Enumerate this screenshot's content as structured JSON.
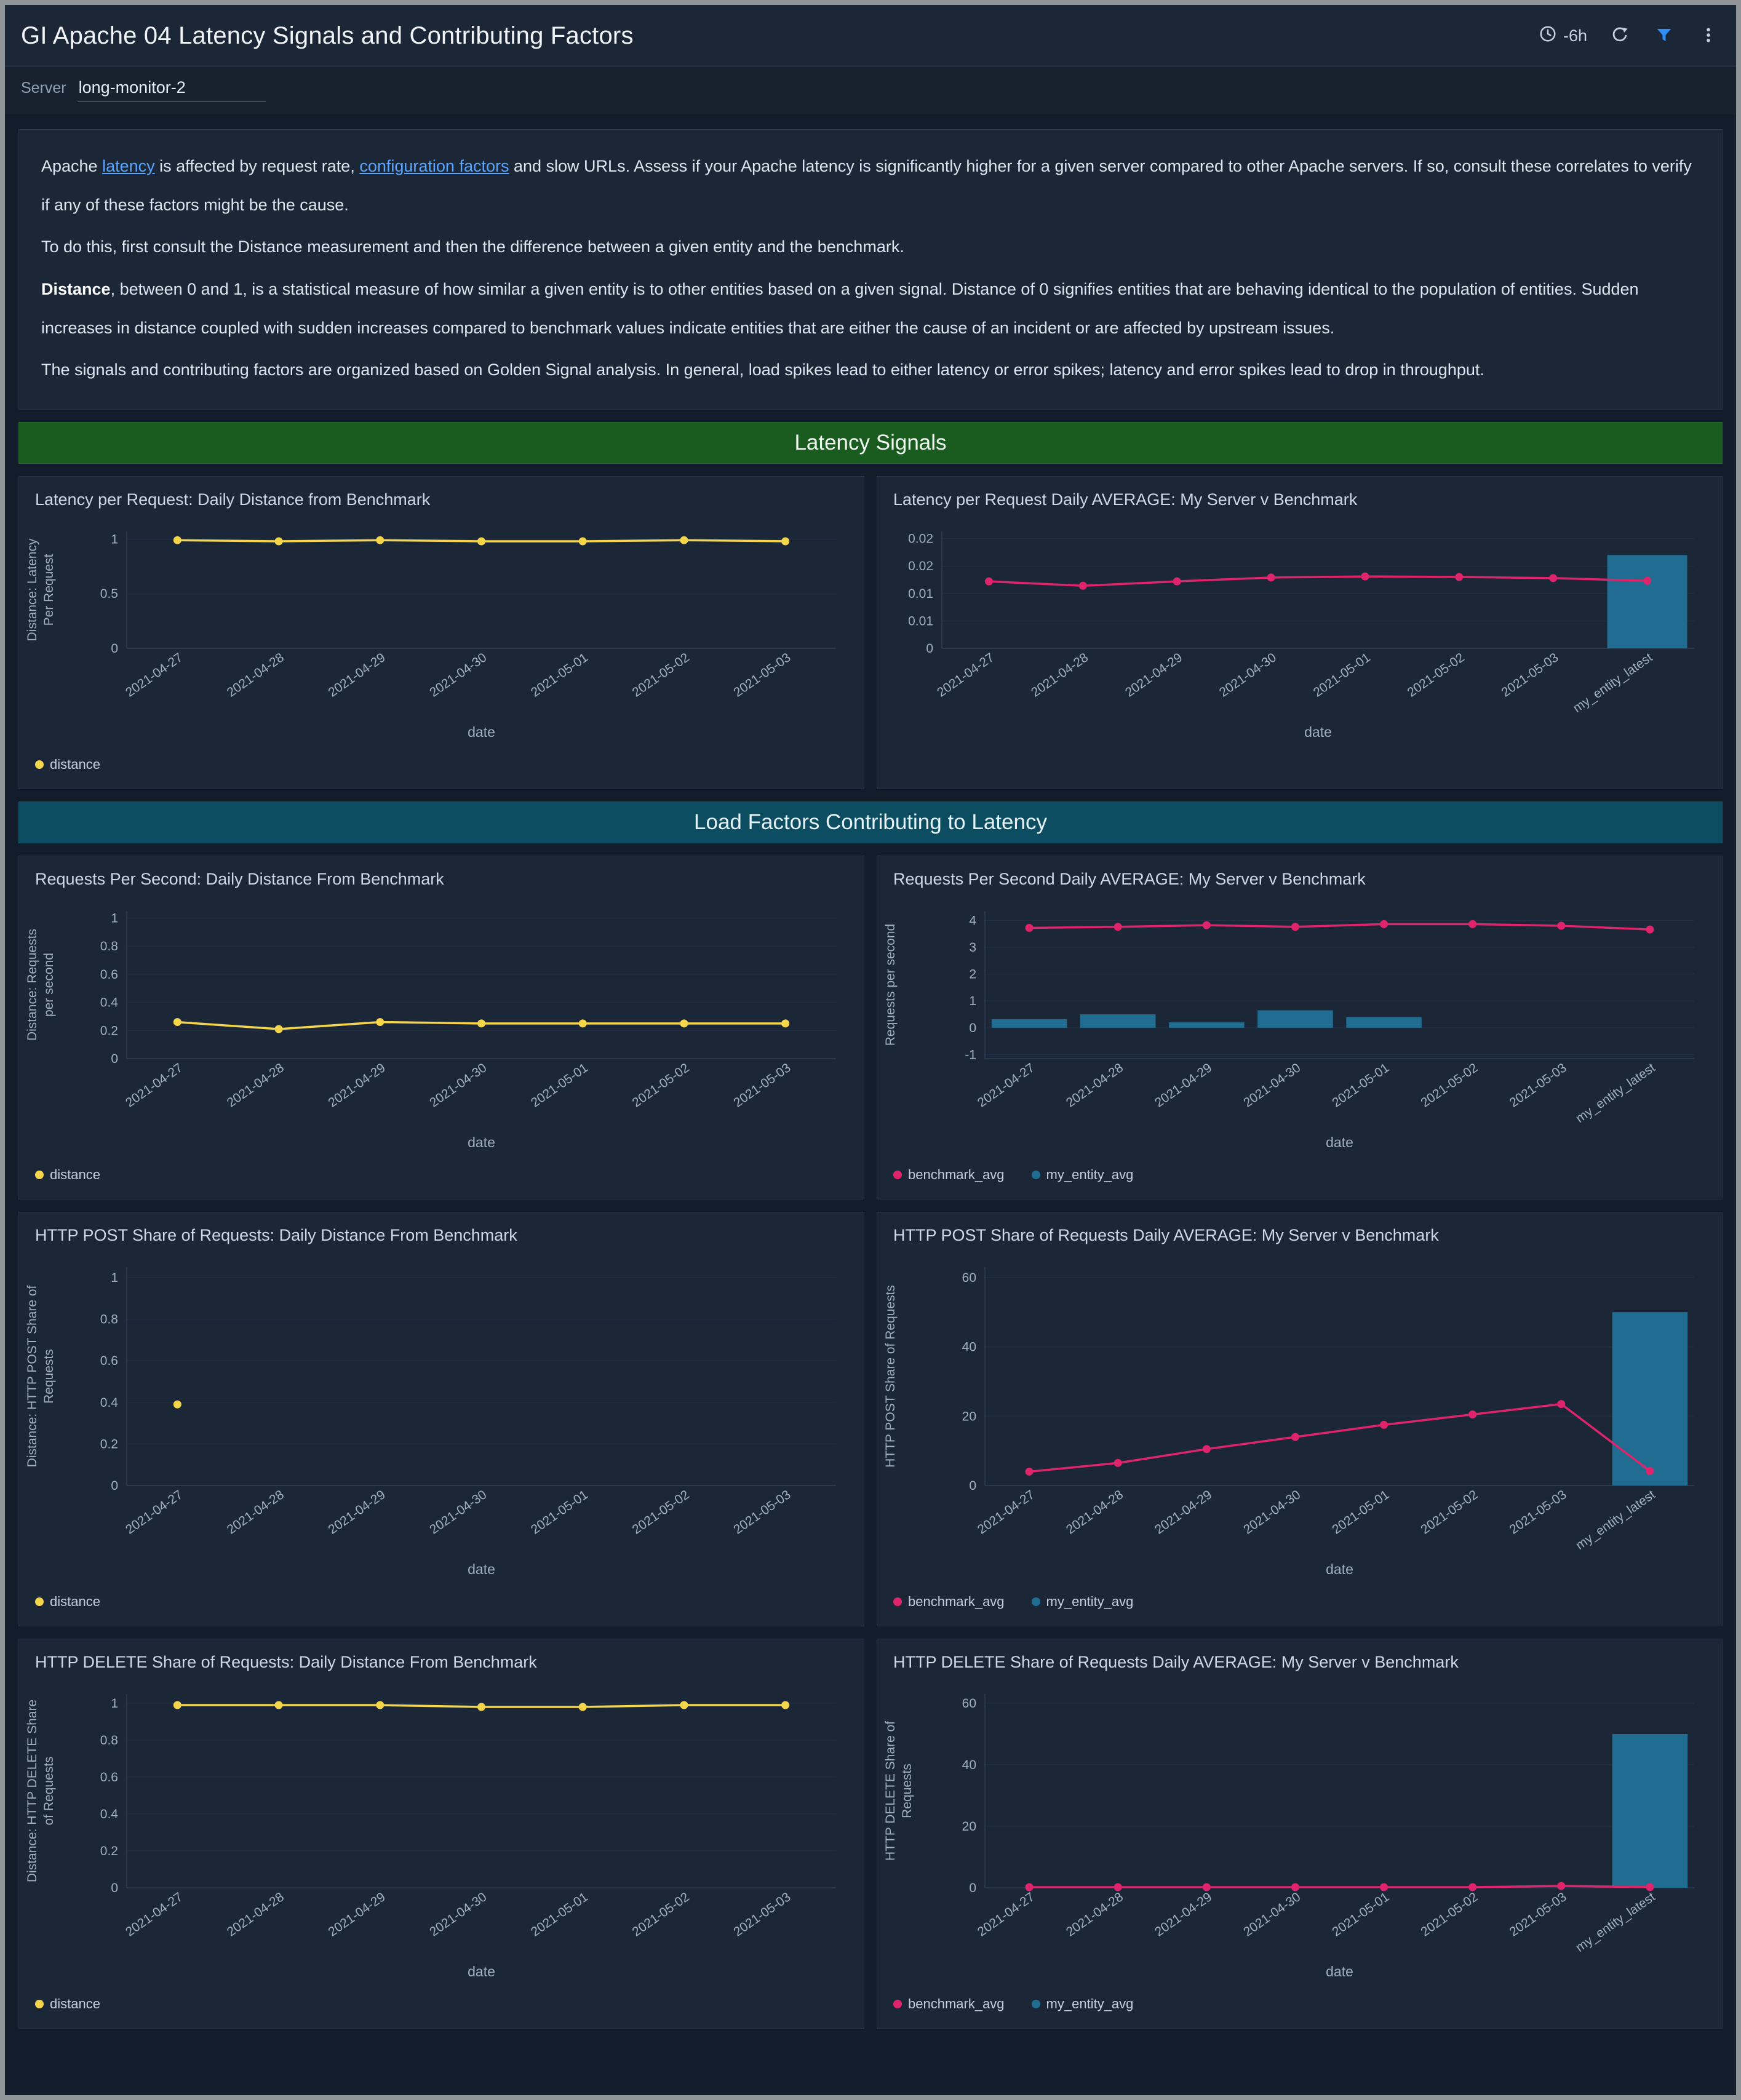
{
  "header": {
    "title": "GI Apache 04 Latency Signals and Contributing Factors",
    "time_range": "-6h"
  },
  "filter": {
    "label": "Server",
    "value": "long-monitor-2"
  },
  "description": {
    "p1": {
      "t1": "Apache ",
      "link1": "latency",
      "t2": " is affected by request rate, ",
      "link2": "configuration factors",
      "t3": " and slow URLs. Assess if your Apache latency is significantly higher for a given server compared to other Apache servers. If so, consult these correlates to verify if any of these factors might be the cause."
    },
    "p2": "To do this, first consult the Distance measurement and then the difference between a given entity and the benchmark.",
    "p3_bold": "Distance",
    "p3_rest": ", between 0 and 1, is a statistical measure of how similar a given entity is to other entities based on a given signal. Distance of 0 signifies entities that are behaving identical to the population of entities. Sudden increases in distance coupled with sudden increases compared to benchmark values indicate entities that are either the cause of an incident or are affected by upstream issues.",
    "p4": "The signals and contributing factors are organized based on Golden Signal analysis. In general, load spikes lead to either latency or error spikes; latency and error spikes lead to drop in throughput."
  },
  "sections": {
    "latency": "Latency Signals",
    "load": "Load Factors Contributing to Latency"
  },
  "colors": {
    "accent_yellow": "#f5d54a",
    "accent_pink": "#e0246c",
    "accent_teal": "#216d92",
    "link_blue": "#58a6ff",
    "green_band": "#1a5c20",
    "teal_band": "#0d4d61"
  },
  "chart_data": [
    {
      "type": "line",
      "title": "Latency per Request: Daily Distance from Benchmark",
      "categories": [
        "2021-04-27",
        "2021-04-28",
        "2021-04-29",
        "2021-04-30",
        "2021-05-01",
        "2021-05-02",
        "2021-05-03"
      ],
      "series": [
        {
          "name": "distance",
          "kind": "line",
          "color": "#f5d54a",
          "values": [
            0.99,
            0.98,
            0.99,
            0.98,
            0.98,
            0.99,
            0.98
          ]
        }
      ],
      "xlabel": "date",
      "ylabel": "Distance: Latency Per Request",
      "ylim": [
        0,
        1.07
      ],
      "yticks": {
        "values": [
          0,
          0.5,
          1
        ],
        "labels": [
          "0",
          "0.5",
          "1"
        ]
      },
      "legend": true
    },
    {
      "type": "line+bar",
      "title": "Latency per Request Daily AVERAGE: My Server v Benchmark",
      "categories": [
        "2021-04-27",
        "2021-04-28",
        "2021-04-29",
        "2021-04-30",
        "2021-05-01",
        "2021-05-02",
        "2021-05-03",
        "my_entity_latest"
      ],
      "series": [
        {
          "name": "benchmark_avg",
          "kind": "line",
          "color": "#e0246c",
          "values": [
            0.0122,
            0.0114,
            0.0122,
            0.0129,
            0.0131,
            0.013,
            0.0128,
            0.0123
          ]
        },
        {
          "name": "my_entity_avg",
          "kind": "bar",
          "color": "#216d92",
          "values": [
            null,
            null,
            null,
            null,
            null,
            null,
            null,
            0.017
          ]
        }
      ],
      "xlabel": "date",
      "ylabel": "",
      "ylim": [
        0,
        0.0213
      ],
      "yticks": {
        "values": [
          0,
          0.005,
          0.01,
          0.015,
          0.02
        ],
        "labels": [
          "0",
          "0.01",
          "0.01",
          "0.02",
          "0.02"
        ]
      },
      "legend": false
    },
    {
      "type": "line",
      "title": "Requests Per Second: Daily Distance From Benchmark",
      "categories": [
        "2021-04-27",
        "2021-04-28",
        "2021-04-29",
        "2021-04-30",
        "2021-05-01",
        "2021-05-02",
        "2021-05-03"
      ],
      "series": [
        {
          "name": "distance",
          "kind": "line",
          "color": "#f5d54a",
          "values": [
            0.26,
            0.21,
            0.26,
            0.25,
            0.25,
            0.25,
            0.25
          ]
        }
      ],
      "xlabel": "date",
      "ylabel": "Distance: Requests per second",
      "ylim": [
        0,
        1.05
      ],
      "yticks": {
        "values": [
          0,
          0.2,
          0.4,
          0.6,
          0.8,
          1
        ],
        "labels": [
          "0",
          "0.2",
          "0.4",
          "0.6",
          "0.8",
          "1"
        ]
      },
      "legend": true
    },
    {
      "type": "line+bar",
      "title": "Requests Per Second Daily AVERAGE: My Server v Benchmark",
      "categories": [
        "2021-04-27",
        "2021-04-28",
        "2021-04-29",
        "2021-04-30",
        "2021-05-01",
        "2021-05-02",
        "2021-05-03",
        "my_entity_latest"
      ],
      "series": [
        {
          "name": "benchmark_avg",
          "kind": "line",
          "color": "#e0246c",
          "values": [
            3.72,
            3.76,
            3.82,
            3.76,
            3.86,
            3.86,
            3.8,
            3.66
          ]
        },
        {
          "name": "my_entity_avg",
          "kind": "bar",
          "color": "#216d92",
          "values": [
            0.32,
            0.5,
            0.2,
            0.65,
            0.4,
            0,
            0,
            0
          ]
        }
      ],
      "xlabel": "date",
      "ylabel": "Requests per second",
      "ylim": [
        -1.15,
        4.35
      ],
      "yticks": {
        "values": [
          -1,
          0,
          1,
          2,
          3,
          4
        ],
        "labels": [
          "-1",
          "0",
          "1",
          "2",
          "3",
          "4"
        ]
      },
      "legend": true
    },
    {
      "type": "line",
      "title": "HTTP POST Share of Requests: Daily Distance From Benchmark",
      "categories": [
        "2021-04-27",
        "2021-04-28",
        "2021-04-29",
        "2021-04-30",
        "2021-05-01",
        "2021-05-02",
        "2021-05-03"
      ],
      "series": [
        {
          "name": "distance",
          "kind": "line",
          "color": "#f5d54a",
          "values": [
            0.39,
            null,
            null,
            null,
            null,
            null,
            null
          ]
        }
      ],
      "xlabel": "date",
      "ylabel": "Distance: HTTP POST Share of Requests",
      "ylim": [
        0,
        1.05
      ],
      "yticks": {
        "values": [
          0,
          0.2,
          0.4,
          0.6,
          0.8,
          1
        ],
        "labels": [
          "0",
          "0.2",
          "0.4",
          "0.6",
          "0.8",
          "1"
        ]
      },
      "legend": true
    },
    {
      "type": "line+bar",
      "title": "HTTP POST Share of Requests Daily AVERAGE: My Server v Benchmark",
      "categories": [
        "2021-04-27",
        "2021-04-28",
        "2021-04-29",
        "2021-04-30",
        "2021-05-01",
        "2021-05-02",
        "2021-05-03",
        "my_entity_latest"
      ],
      "series": [
        {
          "name": "benchmark_avg",
          "kind": "line",
          "color": "#e0246c",
          "values": [
            4,
            6.5,
            10.5,
            14,
            17.5,
            20.5,
            23.5,
            4.2
          ]
        },
        {
          "name": "my_entity_avg",
          "kind": "bar",
          "color": "#216d92",
          "values": [
            null,
            null,
            null,
            null,
            null,
            null,
            null,
            50
          ]
        }
      ],
      "xlabel": "date",
      "ylabel": "HTTP POST Share of Requests",
      "ylim": [
        0,
        63
      ],
      "yticks": {
        "values": [
          0,
          20,
          40,
          60
        ],
        "labels": [
          "0",
          "20",
          "40",
          "60"
        ]
      },
      "legend": true
    },
    {
      "type": "line",
      "title": "HTTP DELETE Share of Requests: Daily Distance From Benchmark",
      "categories": [
        "2021-04-27",
        "2021-04-28",
        "2021-04-29",
        "2021-04-30",
        "2021-05-01",
        "2021-05-02",
        "2021-05-03"
      ],
      "series": [
        {
          "name": "distance",
          "kind": "line",
          "color": "#f5d54a",
          "values": [
            0.99,
            0.99,
            0.99,
            0.98,
            0.98,
            0.99,
            0.99
          ]
        }
      ],
      "xlabel": "date",
      "ylabel": "Distance: HTTP DELETE Share of Requests",
      "ylim": [
        0,
        1.05
      ],
      "yticks": {
        "values": [
          0,
          0.2,
          0.4,
          0.6,
          0.8,
          1
        ],
        "labels": [
          "0",
          "0.2",
          "0.4",
          "0.6",
          "0.8",
          "1"
        ]
      },
      "legend": true
    },
    {
      "type": "line+bar",
      "title": "HTTP DELETE Share of Requests Daily AVERAGE: My Server v Benchmark",
      "categories": [
        "2021-04-27",
        "2021-04-28",
        "2021-04-29",
        "2021-04-30",
        "2021-05-01",
        "2021-05-02",
        "2021-05-03",
        "my_entity_latest"
      ],
      "series": [
        {
          "name": "benchmark_avg",
          "kind": "line",
          "color": "#e0246c",
          "values": [
            0.2,
            0.2,
            0.2,
            0.2,
            0.2,
            0.2,
            0.6,
            0.2
          ]
        },
        {
          "name": "my_entity_avg",
          "kind": "bar",
          "color": "#216d92",
          "values": [
            null,
            null,
            null,
            null,
            null,
            null,
            null,
            50
          ]
        }
      ],
      "xlabel": "date",
      "ylabel": "HTTP DELETE Share of Requests",
      "ylim": [
        0,
        63
      ],
      "yticks": {
        "values": [
          0,
          20,
          40,
          60
        ],
        "labels": [
          "0",
          "20",
          "40",
          "60"
        ]
      },
      "legend": true
    }
  ]
}
